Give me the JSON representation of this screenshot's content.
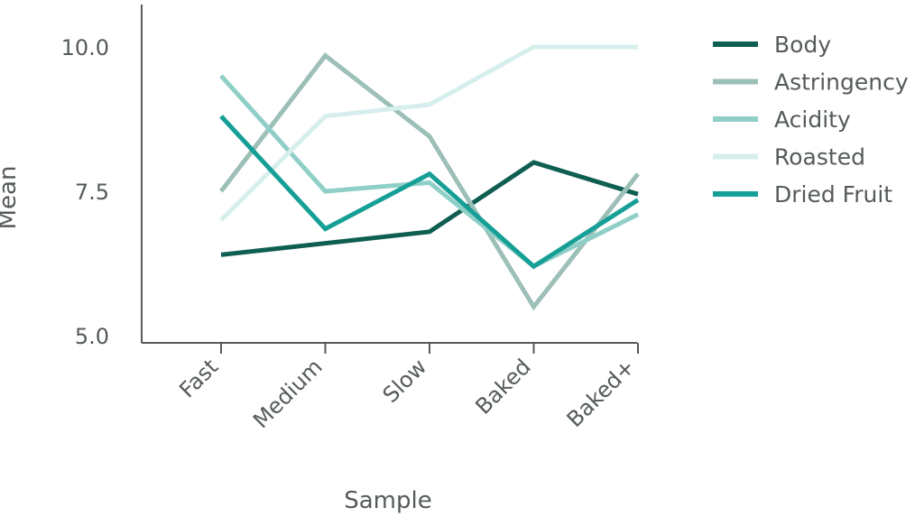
{
  "chart_data": {
    "type": "line",
    "title": "",
    "xlabel": "Sample",
    "ylabel": "Mean",
    "categories": [
      "Fast",
      "Medium",
      "Slow",
      "Baked",
      "Baked+"
    ],
    "ylim": [
      5.0,
      10.0
    ],
    "yticks": [
      "5.0",
      "7.5",
      "10.0"
    ],
    "grid": false,
    "legend_position": "right",
    "series": [
      {
        "name": "Body",
        "color": "#0f5e52",
        "values": [
          6.4,
          6.6,
          6.8,
          8.0,
          7.45
        ]
      },
      {
        "name": "Astringency",
        "color": "#9cbfb8",
        "values": [
          7.5,
          9.85,
          8.45,
          5.5,
          7.8
        ]
      },
      {
        "name": "Acidity",
        "color": "#8fcfc7",
        "values": [
          9.5,
          7.5,
          7.65,
          6.2,
          7.1
        ]
      },
      {
        "name": "Roasted",
        "color": "#d6efed",
        "values": [
          7.0,
          8.8,
          9.0,
          10.0,
          10.0
        ]
      },
      {
        "name": "Dried Fruit",
        "color": "#169f96",
        "values": [
          8.8,
          6.85,
          7.8,
          6.2,
          7.35
        ]
      }
    ]
  }
}
